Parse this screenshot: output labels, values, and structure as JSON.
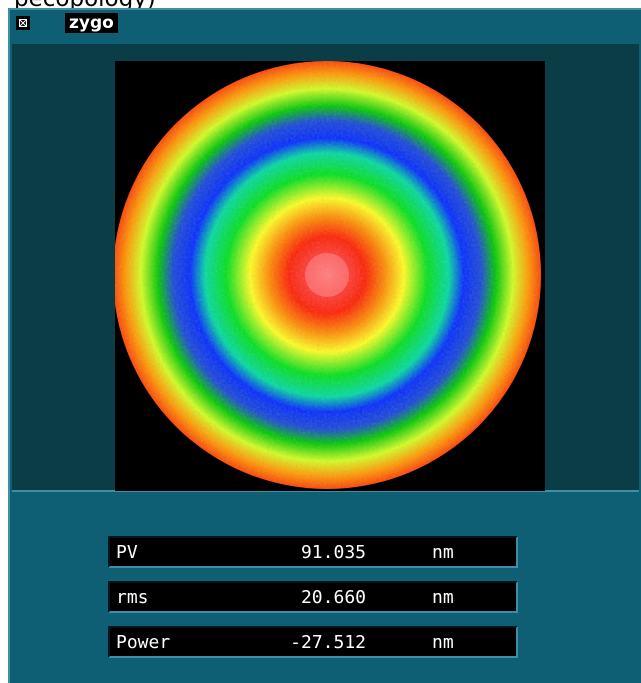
{
  "title_fragment": "pecopology)",
  "window": {
    "close_icon": "close-box-icon",
    "logo_text": "zygo"
  },
  "colors": {
    "frame": "#0e5f74",
    "panel": "#0b3d47",
    "map_background": "#000000",
    "readout_background": "#000000",
    "readout_text": "#ffffff"
  },
  "colormap": [
    "#ff0000",
    "#ff8a00",
    "#ffff00",
    "#00ff00",
    "#0038ff"
  ],
  "metrics": [
    {
      "label": "PV",
      "value": "91.035",
      "unit": "nm"
    },
    {
      "label": "rms",
      "value": "20.660",
      "unit": "nm"
    },
    {
      "label": "Power",
      "value": "-27.512",
      "unit": "nm"
    }
  ]
}
